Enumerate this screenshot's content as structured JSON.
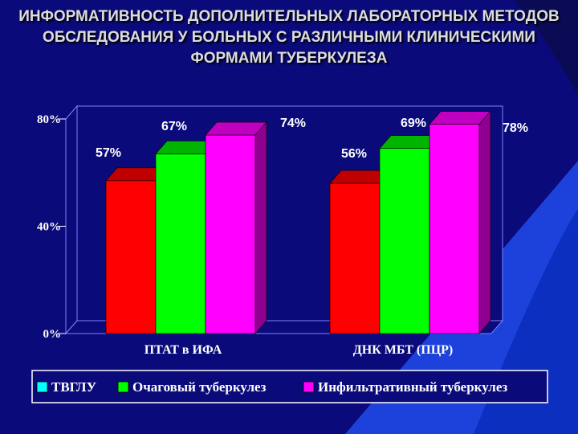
{
  "title": "ИНФОРМАТИВНОСТЬ ДОПОЛНИТЕЛЬНЫХ ЛАБОРАТОРНЫХ МЕТОДОВ ОБСЛЕДОВАНИЯ У БОЛЬНЫХ С РАЗЛИЧНЫМИ КЛИНИЧЕСКИМИ ФОРМАМИ ТУБЕРКУЛЕЗА",
  "colors": {
    "background": "#0a0a7a",
    "decor": "#1f47e6",
    "series": [
      "#ff0000",
      "#00ff00",
      "#ff00ff"
    ],
    "series_top": [
      "#c00000",
      "#00b400",
      "#c000c0"
    ],
    "series_side": [
      "#900000",
      "#008a00",
      "#900090"
    ],
    "legend_swatch": [
      "#00ffff",
      "#00ff00",
      "#ff00ff"
    ]
  },
  "chart_data": {
    "type": "bar",
    "categories": [
      "ПТАТ в ИФА",
      "ДНК МБТ (ПЦР)"
    ],
    "series": [
      {
        "name": "ТВГЛУ",
        "values": [
          57,
          56
        ],
        "labels": [
          "57%",
          "56%"
        ]
      },
      {
        "name": "Очаговый туберкулез",
        "values": [
          67,
          69
        ],
        "labels": [
          "67%",
          "69%"
        ]
      },
      {
        "name": "Инфильтративный туберкулез",
        "values": [
          74,
          78
        ],
        "labels": [
          "74%",
          "78%"
        ]
      }
    ],
    "ylim": [
      0,
      80
    ],
    "y_ticks": [
      0,
      40,
      80
    ],
    "y_tick_labels": [
      "0%",
      "40%",
      "80%"
    ],
    "grid": false,
    "legend": "bottom"
  }
}
